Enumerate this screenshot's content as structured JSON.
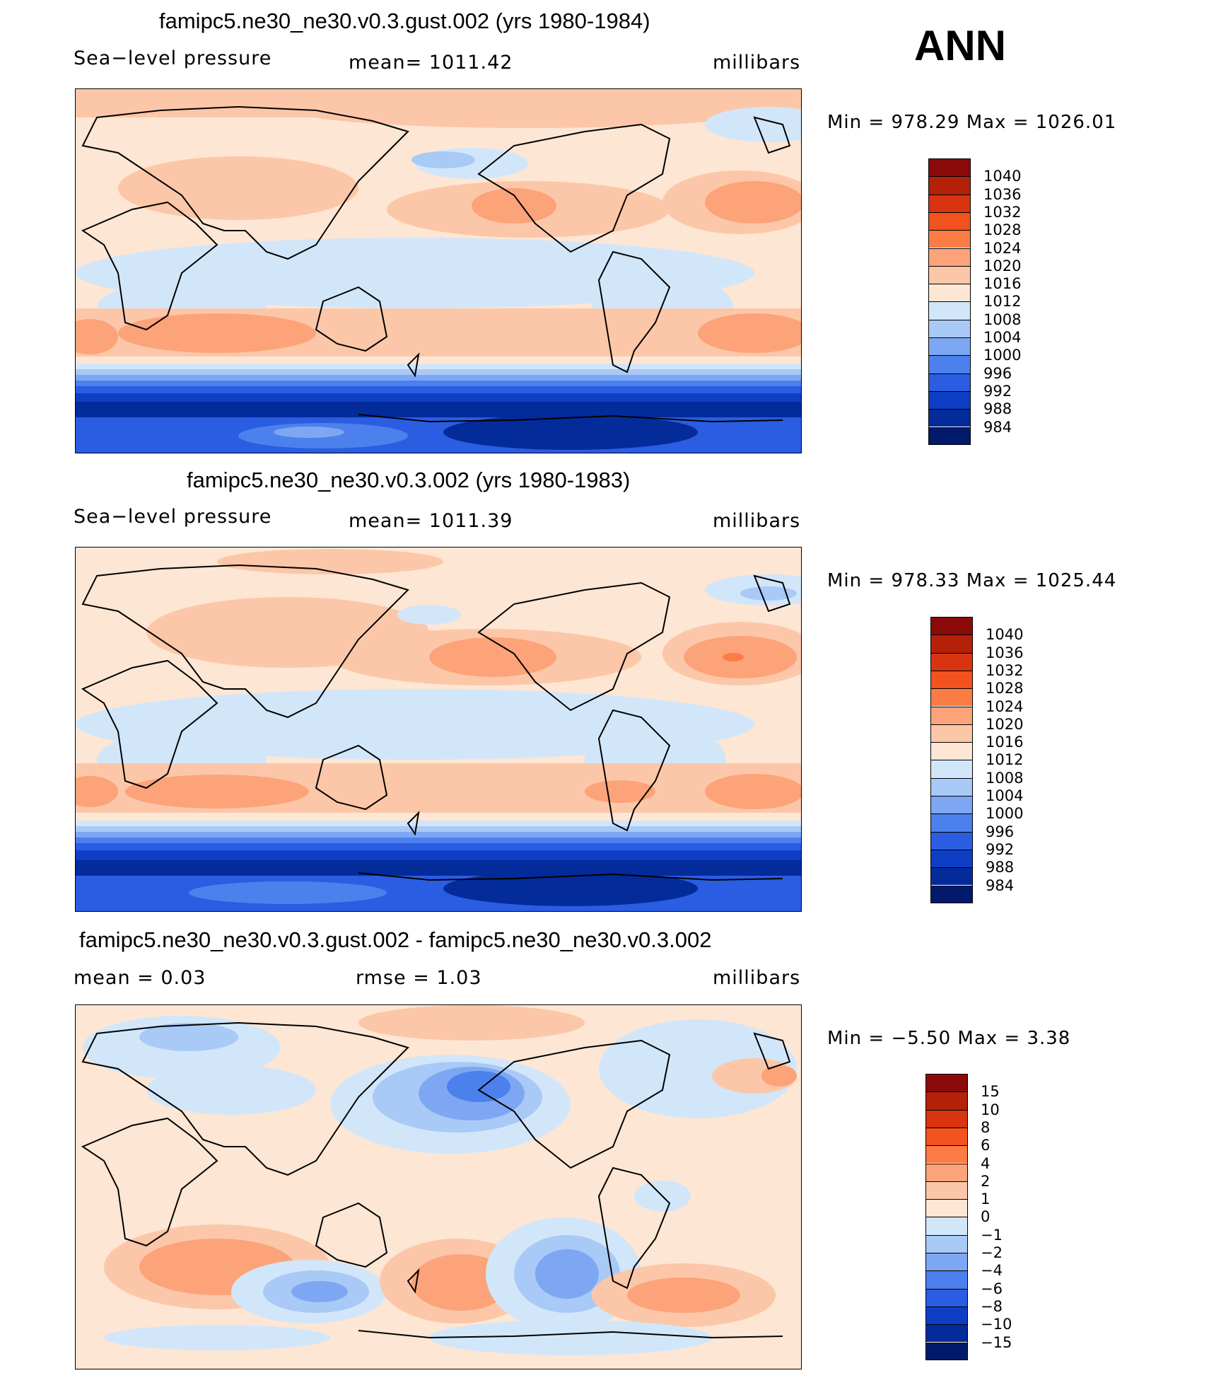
{
  "season": "ANN",
  "panels": [
    {
      "title": "famipc5.ne30_ne30.v0.3.gust.002 (yrs 1980-1984)",
      "left_label": "Sea−level pressure",
      "center_label": "mean=  1011.42",
      "right_label": "millibars",
      "minmax": "Min  =  978.29  Max  =  1026.01"
    },
    {
      "title": "famipc5.ne30_ne30.v0.3.002 (yrs 1980-1983)",
      "left_label": "Sea−level pressure",
      "center_label": "mean=  1011.39",
      "right_label": "millibars",
      "minmax": "Min  =  978.33  Max  =  1025.44"
    },
    {
      "title": "famipc5.ne30_ne30.v0.3.gust.002 - famipc5.ne30_ne30.v0.3.002",
      "left_label": "mean  =     0.03",
      "center_label": "rmse  =     1.03",
      "right_label": "millibars",
      "minmax": "Min  =    −5.50  Max  =      3.38"
    }
  ],
  "colorbars": {
    "pressure": {
      "labels": [
        "1040",
        "1036",
        "1032",
        "1028",
        "1024",
        "1020",
        "1016",
        "1012",
        "1008",
        "1004",
        "1000",
        "996",
        "992",
        "988",
        "984"
      ],
      "colors": [
        "#8b0a0a",
        "#b52008",
        "#d93410",
        "#f2531e",
        "#fc7c45",
        "#fca37a",
        "#fcc7a8",
        "#fde6d3",
        "#d2e6fa",
        "#a9c9f7",
        "#7ea7f3",
        "#4c80ec",
        "#2a5de1",
        "#0f3ec6",
        "#032b9a",
        "#011a6c"
      ]
    },
    "difference": {
      "labels": [
        "15",
        "10",
        "8",
        "6",
        "4",
        "2",
        "1",
        "0",
        "−1",
        "−2",
        "−4",
        "−6",
        "−8",
        "−10",
        "−15"
      ],
      "colors": [
        "#8b0a0a",
        "#b52008",
        "#d93410",
        "#f2531e",
        "#fc7c45",
        "#fca37a",
        "#fcc7a8",
        "#fde6d3",
        "#d2e6fa",
        "#a9c9f7",
        "#7ea7f3",
        "#4c80ec",
        "#2a5de1",
        "#0f3ec6",
        "#032b9a",
        "#011a6c"
      ]
    }
  },
  "chart_data": [
    {
      "type": "heatmap",
      "title": "famipc5.ne30_ne30.v0.3.gust.002 (yrs 1980-1984)",
      "variable": "Sea−level pressure",
      "units": "millibars",
      "mean": 1011.42,
      "min": 978.29,
      "max": 1026.01,
      "contour_levels": [
        984,
        988,
        992,
        996,
        1000,
        1004,
        1008,
        1012,
        1016,
        1020,
        1024,
        1028,
        1032,
        1036,
        1040
      ]
    },
    {
      "type": "heatmap",
      "title": "famipc5.ne30_ne30.v0.3.002 (yrs 1980-1983)",
      "variable": "Sea−level pressure",
      "units": "millibars",
      "mean": 1011.39,
      "min": 978.33,
      "max": 1025.44,
      "contour_levels": [
        984,
        988,
        992,
        996,
        1000,
        1004,
        1008,
        1012,
        1016,
        1020,
        1024,
        1028,
        1032,
        1036,
        1040
      ]
    },
    {
      "type": "heatmap",
      "title": "famipc5.ne30_ne30.v0.3.gust.002 - famipc5.ne30_ne30.v0.3.002",
      "units": "millibars",
      "mean": 0.03,
      "rmse": 1.03,
      "min": -5.5,
      "max": 3.38,
      "contour_levels": [
        -15,
        -10,
        -8,
        -6,
        -4,
        -2,
        -1,
        0,
        1,
        2,
        4,
        6,
        8,
        10,
        15
      ]
    }
  ]
}
